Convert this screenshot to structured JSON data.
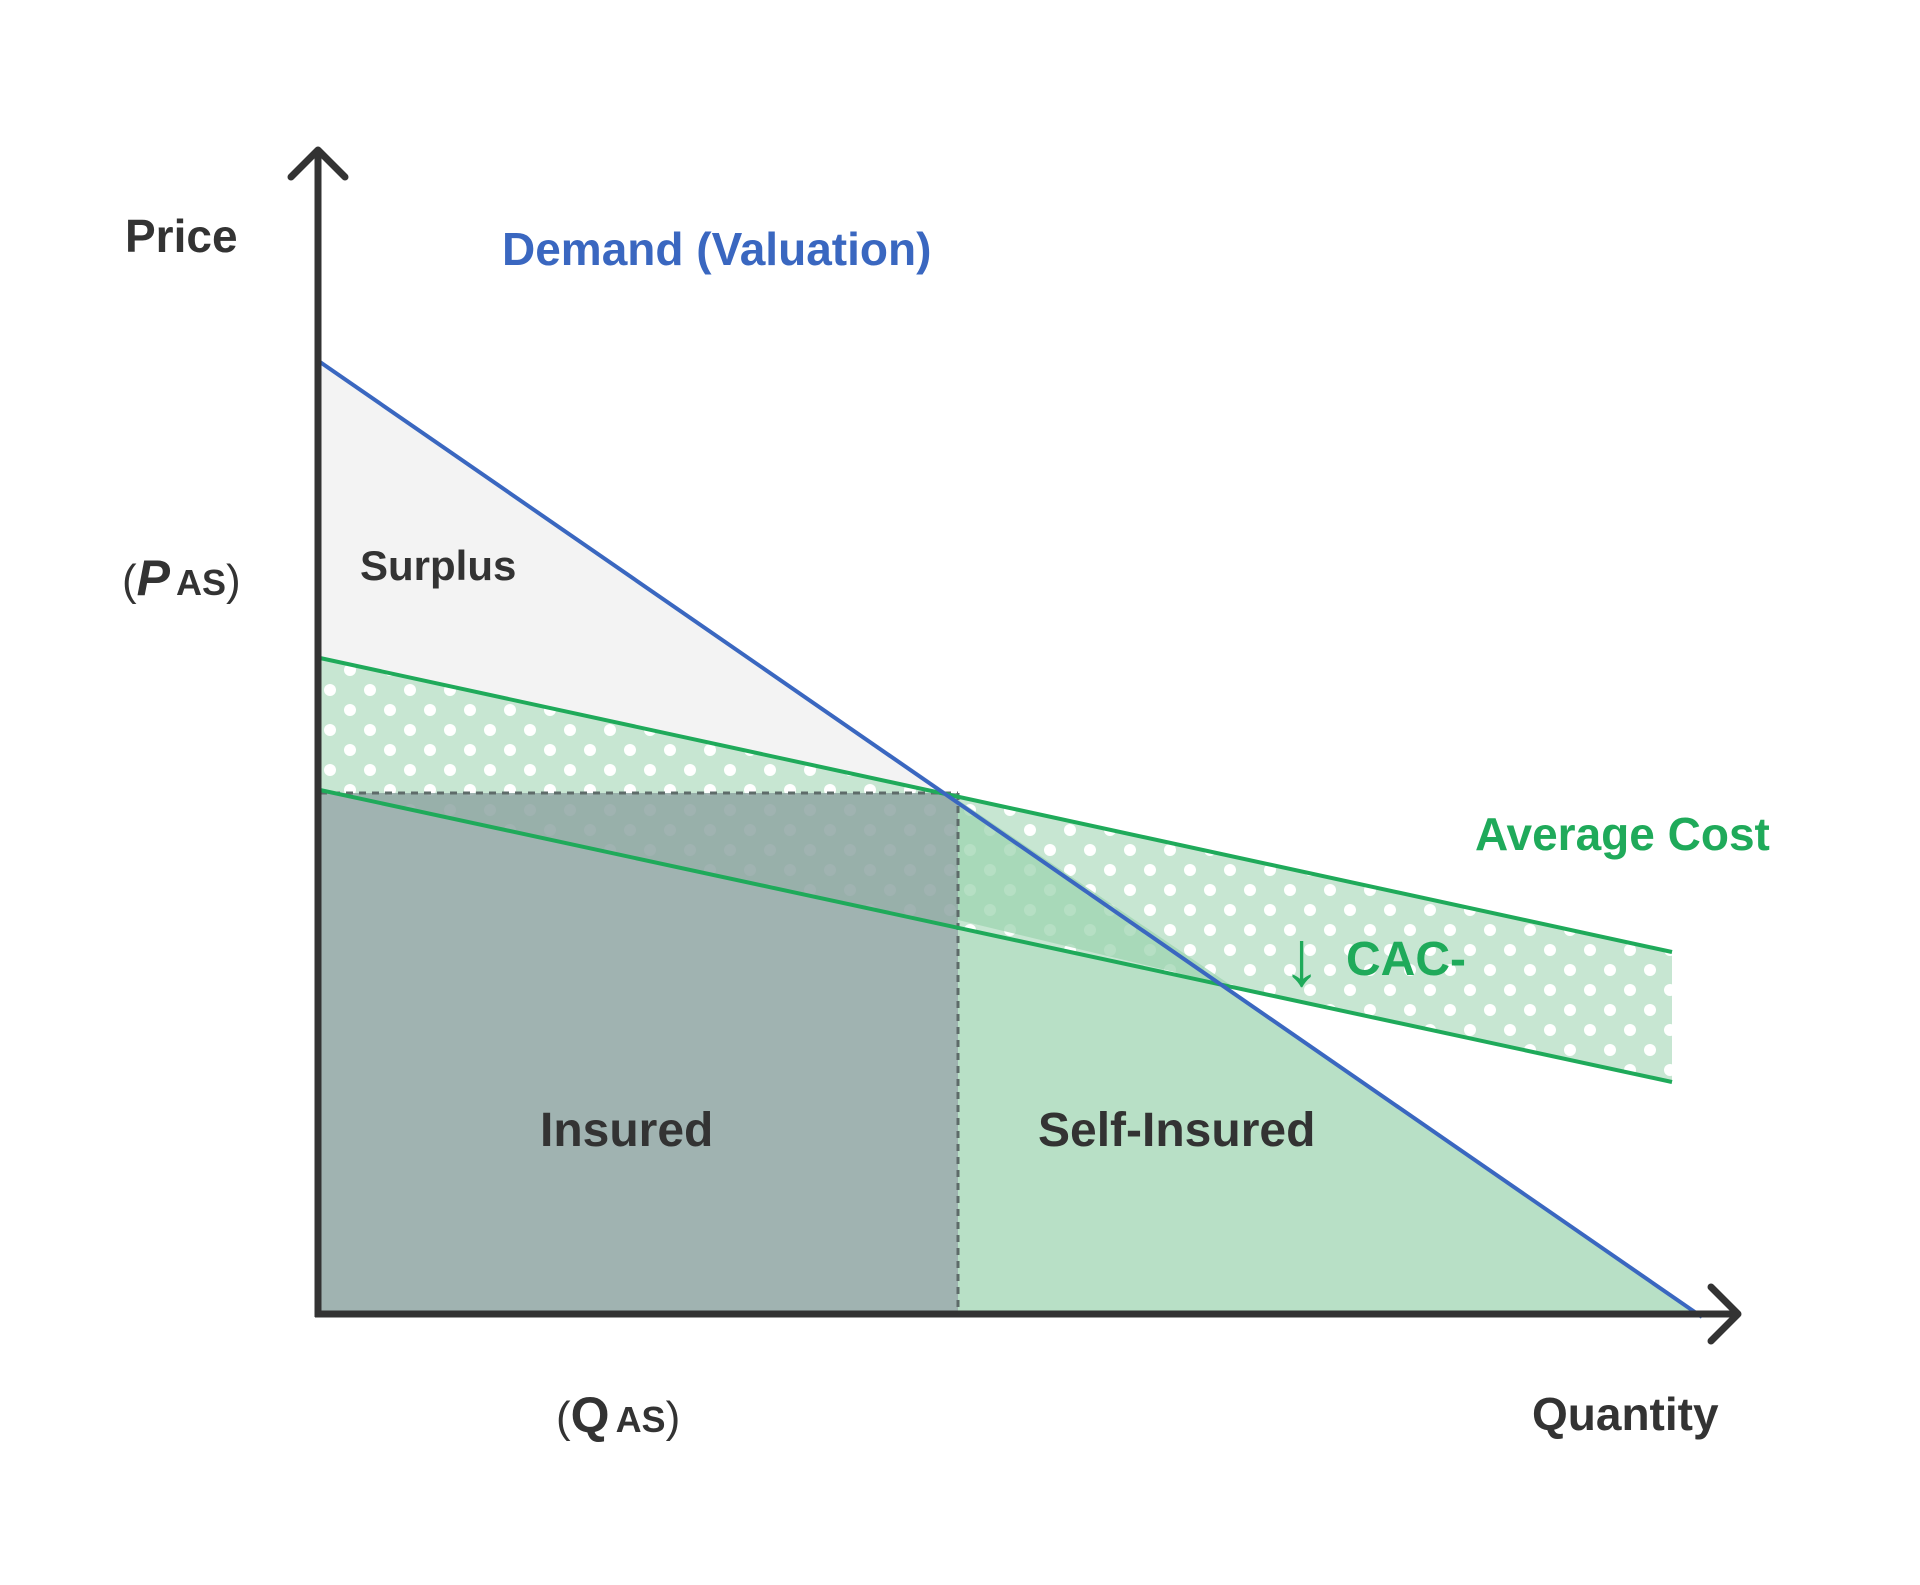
{
  "axes": {
    "y_label": "Price",
    "x_label": "Quantity",
    "p_as": {
      "open": "(",
      "symbol": "P",
      "sub": "AS",
      "close": ")"
    },
    "q_as": {
      "open": "(",
      "symbol": "Q",
      "sub": "AS",
      "close": ")"
    }
  },
  "curves": {
    "demand_label": "Demand (Valuation)",
    "average_cost_label": "Average Cost"
  },
  "annotation": {
    "arrow_glyph": "↓",
    "cac_label": "CAC-"
  },
  "regions": {
    "surplus": "Surplus",
    "insured": "Insured",
    "self_insured": "Self-Insured"
  },
  "colors": {
    "axis": "#333333",
    "demand": "#3a67c0",
    "cost": "#1faa5a",
    "text": "#333333",
    "surplus_fill": "#f3f3f3",
    "insured_fill": "#9badac",
    "self_insured_fill": "#b8e0c6",
    "band_fill": "#c7e6d2",
    "band_dots": "#ffffff"
  }
}
